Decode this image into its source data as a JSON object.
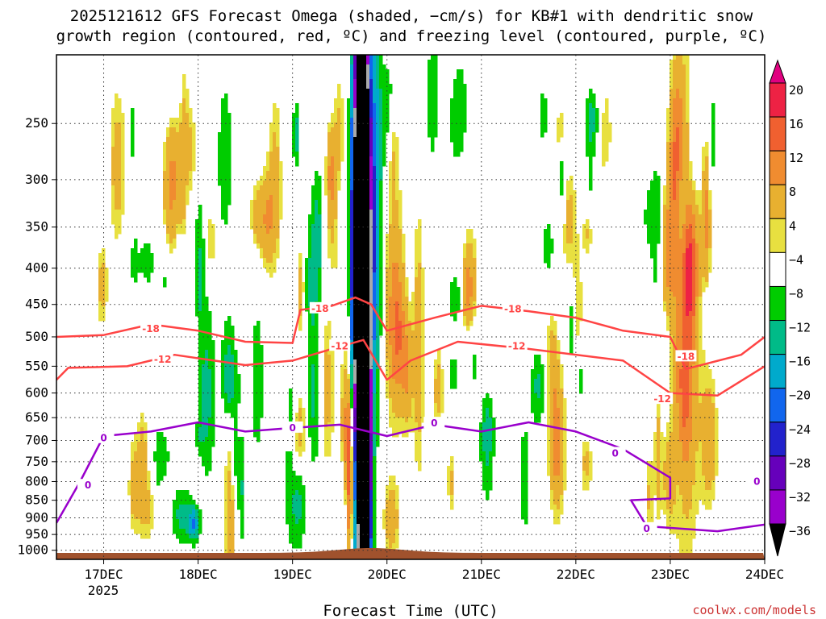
{
  "title_line1": "2025121612 GFS Forecast Omega (shaded, −cm/s) for KB#1 with dendritic snow",
  "title_line2": "growth region (contoured, red, ºC) and freezing level (contoured, purple, ºC)",
  "xlabel": "Forecast Time (UTC)",
  "credit": "coolwx.com/models",
  "colors": {
    "temp_contour": "#ff4444",
    "freezing_contour": "#9900cc",
    "terrain": "#a0522d"
  },
  "chart_data": {
    "type": "heatmap",
    "x_axis": {
      "range": [
        "2025-12-16T12",
        "2025-12-24T00"
      ],
      "ticks": [
        "17DEC",
        "18DEC",
        "19DEC",
        "20DEC",
        "21DEC",
        "22DEC",
        "23DEC",
        "24DEC"
      ],
      "year_label": "2025"
    },
    "y_axis": {
      "unit": "hPa",
      "inverted": true,
      "scale": "log",
      "range": [
        1030,
        200
      ],
      "ticks": [
        250,
        300,
        350,
        400,
        450,
        500,
        550,
        600,
        650,
        700,
        750,
        800,
        850,
        900,
        950,
        1000
      ]
    },
    "grid": true,
    "colorbar": {
      "labels": [
        "20",
        "16",
        "12",
        "8",
        "4",
        "−4",
        "−8",
        "−12",
        "−16",
        "−20",
        "−24",
        "−28",
        "−32",
        "−36"
      ],
      "colors": [
        "#ee2244",
        "#f06030",
        "#f08c30",
        "#e8b030",
        "#e8e040",
        "#ffffff",
        "#00cc00",
        "#00bb88",
        "#00aacc",
        "#1166ee",
        "#2222cc",
        "#6600bb",
        "#9900cc",
        "#aaaaaa",
        "#000000"
      ],
      "top_arrow_color": "#e00080",
      "bottom_arrow_color": "#000000"
    },
    "contours": [
      {
        "level": "-18",
        "color": "#ff4444",
        "points": [
          [
            "2025-12-16T12",
            500
          ],
          [
            "2025-12-17T00",
            497
          ],
          [
            "2025-12-17T12",
            480
          ],
          [
            "2025-12-18T00",
            490
          ],
          [
            "2025-12-18T12",
            508
          ],
          [
            "2025-12-19T00",
            510
          ],
          [
            "2025-12-19T02",
            458
          ],
          [
            "2025-12-19T10",
            452
          ],
          [
            "2025-12-19T16",
            440
          ],
          [
            "2025-12-19T20",
            450
          ],
          [
            "2025-12-20T00",
            490
          ],
          [
            "2025-12-20T12",
            470
          ],
          [
            "2025-12-21T00",
            452
          ],
          [
            "2025-12-21T12",
            460
          ],
          [
            "2025-12-22T00",
            470
          ],
          [
            "2025-12-22T12",
            490
          ],
          [
            "2025-12-23T00",
            500
          ],
          [
            "2025-12-23T04",
            555
          ],
          [
            "2025-12-23T18",
            530
          ],
          [
            "2025-12-24T00",
            500
          ]
        ],
        "labels": [
          [
            "2025-12-17T12",
            487
          ],
          [
            "2025-12-19T07",
            456
          ],
          [
            "2025-12-21T08",
            457
          ],
          [
            "2025-12-23T04",
            533
          ]
        ]
      },
      {
        "level": "-12",
        "color": "#ff4444",
        "points": [
          [
            "2025-12-16T12",
            575
          ],
          [
            "2025-12-16T15",
            553
          ],
          [
            "2025-12-17T06",
            550
          ],
          [
            "2025-12-17T18",
            530
          ],
          [
            "2025-12-18T12",
            548
          ],
          [
            "2025-12-19T00",
            540
          ],
          [
            "2025-12-19T10",
            520
          ],
          [
            "2025-12-19T18",
            505
          ],
          [
            "2025-12-20T00",
            575
          ],
          [
            "2025-12-20T06",
            540
          ],
          [
            "2025-12-20T18",
            508
          ],
          [
            "2025-12-21T12",
            520
          ],
          [
            "2025-12-22T12",
            540
          ],
          [
            "2025-12-23T00",
            600
          ],
          [
            "2025-12-23T12",
            605
          ],
          [
            "2025-12-24T00",
            550
          ]
        ],
        "labels": [
          [
            "2025-12-17T15",
            538
          ],
          [
            "2025-12-19T12",
            515
          ],
          [
            "2025-12-21T09",
            515
          ],
          [
            "2025-12-22T22",
            612
          ]
        ]
      },
      {
        "level": "0",
        "color": "#9900cc",
        "points": [
          [
            "2025-12-16T12",
            915
          ],
          [
            "2025-12-16T18",
            800
          ],
          [
            "2025-12-17T00",
            690
          ],
          [
            "2025-12-17T12",
            680
          ],
          [
            "2025-12-18T00",
            660
          ],
          [
            "2025-12-18T12",
            680
          ],
          [
            "2025-12-19T00",
            672
          ],
          [
            "2025-12-19T12",
            665
          ],
          [
            "2025-12-20T00",
            690
          ],
          [
            "2025-12-20T12",
            665
          ],
          [
            "2025-12-21T00",
            680
          ],
          [
            "2025-12-21T12",
            660
          ],
          [
            "2025-12-22T00",
            680
          ],
          [
            "2025-12-22T12",
            720
          ],
          [
            "2025-12-23T00",
            790
          ],
          [
            "2025-12-23T00",
            845
          ],
          [
            "2025-12-22T14",
            850
          ],
          [
            "2025-12-22T18",
            925
          ],
          [
            "2025-12-23T12",
            940
          ],
          [
            "2025-12-24T00",
            920
          ]
        ],
        "labels": [
          [
            "2025-12-16T20",
            810
          ],
          [
            "2025-12-17T00",
            695
          ],
          [
            "2025-12-19T00",
            672
          ],
          [
            "2025-12-20T12",
            662
          ],
          [
            "2025-12-22T10",
            730
          ],
          [
            "2025-12-22T18",
            932
          ],
          [
            "2025-12-23T22",
            800
          ]
        ]
      }
    ]
  }
}
